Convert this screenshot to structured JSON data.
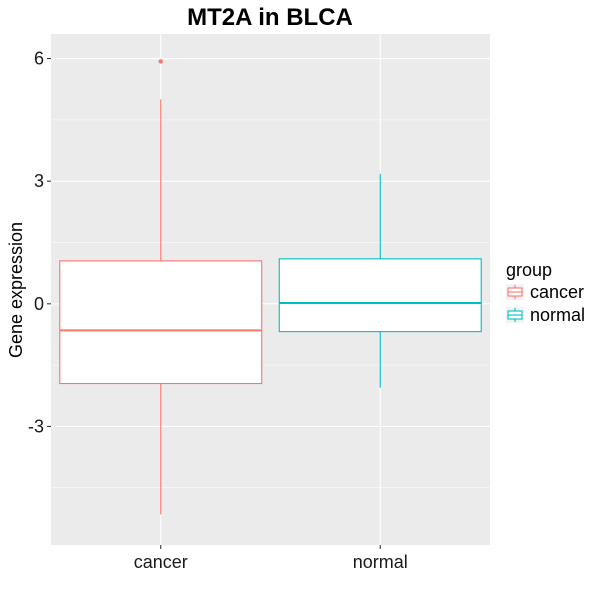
{
  "chart_data": {
    "type": "box",
    "title": "MT2A in BLCA",
    "xlabel": "",
    "ylabel": "Gene expression",
    "ylim": [
      -5.9,
      6.6
    ],
    "yticks": [
      -3,
      0,
      3,
      6
    ],
    "categories": [
      "cancer",
      "normal"
    ],
    "grid": true,
    "legend": {
      "title": "group",
      "position": "right",
      "entries": [
        {
          "label": "cancer",
          "color": "#f8766d"
        },
        {
          "label": "normal",
          "color": "#00bfc4"
        }
      ]
    },
    "series": [
      {
        "category": "cancer",
        "color": "#f8766d",
        "min": -5.15,
        "q1": -1.95,
        "median": -0.65,
        "q3": 1.05,
        "max": 5.0,
        "outliers": [
          5.93
        ]
      },
      {
        "category": "normal",
        "color": "#00bfc4",
        "min": -2.05,
        "q1": -0.68,
        "median": 0.02,
        "q3": 1.1,
        "max": 3.18,
        "outliers": []
      }
    ]
  }
}
